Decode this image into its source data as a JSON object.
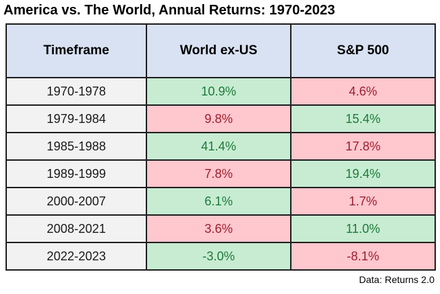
{
  "title": "America vs. The World, Annual Returns: 1970-2023",
  "source_note": "Data: Returns 2.0",
  "colors": {
    "header_bg": "#d9e2f3",
    "timeframe_bg": "#f2f2f2",
    "positive_bg": "#c7ecd2",
    "positive_text": "#1f7a3a",
    "negative_bg": "#ffc7ce",
    "negative_text": "#9c1f2d",
    "border": "#1f1f1f"
  },
  "table": {
    "headers": {
      "timeframe": "Timeframe",
      "world": "World ex-US",
      "sp500": "S&P 500"
    },
    "rows": [
      {
        "timeframe": "1970-1978",
        "world": {
          "value": "10.9%",
          "tone": "green"
        },
        "sp500": {
          "value": "4.6%",
          "tone": "red"
        }
      },
      {
        "timeframe": "1979-1984",
        "world": {
          "value": "9.8%",
          "tone": "red"
        },
        "sp500": {
          "value": "15.4%",
          "tone": "green"
        }
      },
      {
        "timeframe": "1985-1988",
        "world": {
          "value": "41.4%",
          "tone": "green"
        },
        "sp500": {
          "value": "17.8%",
          "tone": "red"
        }
      },
      {
        "timeframe": "1989-1999",
        "world": {
          "value": "7.8%",
          "tone": "red"
        },
        "sp500": {
          "value": "19.4%",
          "tone": "green"
        }
      },
      {
        "timeframe": "2000-2007",
        "world": {
          "value": "6.1%",
          "tone": "green"
        },
        "sp500": {
          "value": "1.7%",
          "tone": "red"
        }
      },
      {
        "timeframe": "2008-2021",
        "world": {
          "value": "3.6%",
          "tone": "red"
        },
        "sp500": {
          "value": "11.0%",
          "tone": "green"
        }
      },
      {
        "timeframe": "2022-2023",
        "world": {
          "value": "-3.0%",
          "tone": "green"
        },
        "sp500": {
          "value": "-8.1%",
          "tone": "red"
        }
      }
    ]
  },
  "chart_data": {
    "type": "table",
    "title": "America vs. The World, Annual Returns: 1970-2023",
    "categories": [
      "1970-1978",
      "1979-1984",
      "1985-1988",
      "1989-1999",
      "2000-2007",
      "2008-2021",
      "2022-2023"
    ],
    "series": [
      {
        "name": "World ex-US",
        "values": [
          10.9,
          9.8,
          41.4,
          7.8,
          6.1,
          3.6,
          -3.0
        ],
        "unit": "%"
      },
      {
        "name": "S&P 500",
        "values": [
          4.6,
          15.4,
          17.8,
          19.4,
          1.7,
          11.0,
          -8.1
        ],
        "unit": "%"
      }
    ],
    "highlight_rule": "green cell = higher return in that timeframe, pink cell = lower return",
    "source": "Data: Returns 2.0"
  }
}
